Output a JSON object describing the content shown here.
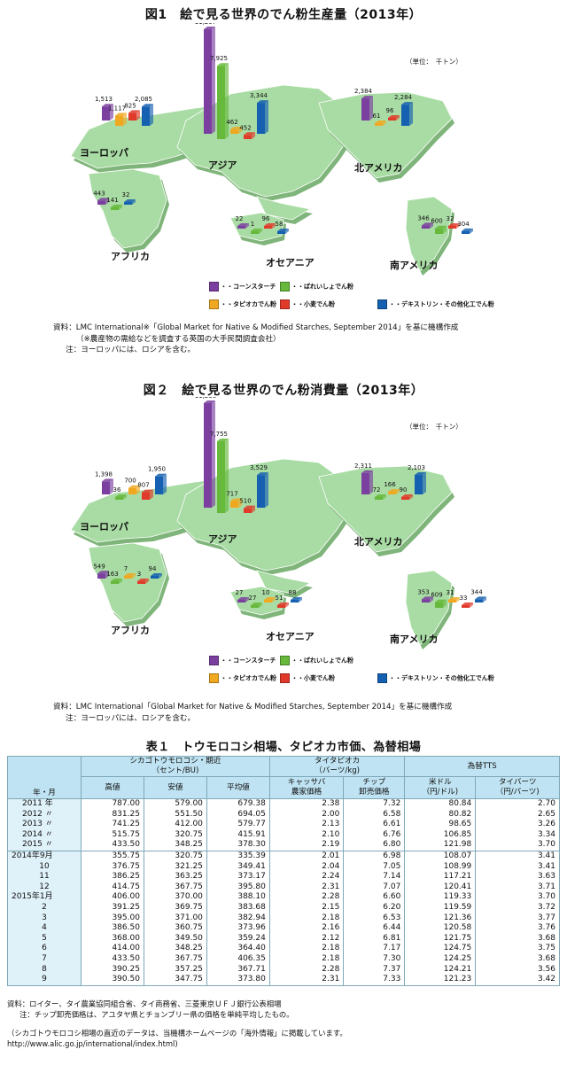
{
  "fig1": {
    "title": "図1　絵で見る世界のでん粉生産量（2013年）",
    "unit": "（単位：　千トン）",
    "regions": [
      "ヨーロッパ",
      "アジア",
      "北アメリカ",
      "アフリカ",
      "オセアニア",
      "南アメリカ"
    ],
    "legend": [
      "・・コーンスターチ",
      "・・ばれいしょでん粉",
      "・・タピオカでん粉",
      "・・小麦でん粉",
      "・・デキストリン・その他化工でん粉"
    ],
    "bars": [
      {
        "region": "ヨーロッパ",
        "label": "1,513",
        "value": 1513,
        "type": "corn"
      },
      {
        "region": "ヨーロッパ",
        "label": "1,117",
        "value": 1117,
        "type": "potato"
      },
      {
        "region": "ヨーロッパ",
        "label": "825",
        "value": 825,
        "type": "wheat"
      },
      {
        "region": "ヨーロッパ",
        "label": "2,085",
        "value": 2085,
        "type": "dextrin"
      },
      {
        "region": "アジア",
        "label": "11,297",
        "value": 11297,
        "type": "corn"
      },
      {
        "region": "アジア",
        "label": "7,925",
        "value": 7925,
        "type": "tapioca"
      },
      {
        "region": "アジア",
        "label": "462",
        "value": 462,
        "type": "potato"
      },
      {
        "region": "アジア",
        "label": "452",
        "value": 452,
        "type": "wheat"
      },
      {
        "region": "アジア",
        "label": "3,344",
        "value": 3344,
        "type": "dextrin"
      },
      {
        "region": "北アメリカ",
        "label": "2,384",
        "value": 2384,
        "type": "corn"
      },
      {
        "region": "北アメリカ",
        "label": "61",
        "value": 61,
        "type": "potato"
      },
      {
        "region": "北アメリカ",
        "label": "96",
        "value": 96,
        "type": "wheat"
      },
      {
        "region": "北アメリカ",
        "label": "2,284",
        "value": 2284,
        "type": "dextrin"
      },
      {
        "region": "アフリカ",
        "label": "443",
        "value": 443,
        "type": "corn"
      },
      {
        "region": "アフリカ",
        "label": "141",
        "value": 141,
        "type": "tapioca"
      },
      {
        "region": "アフリカ",
        "label": "32",
        "value": 32,
        "type": "dextrin"
      },
      {
        "region": "オセアニア",
        "label": "22",
        "value": 22,
        "type": "corn"
      },
      {
        "region": "オセアニア",
        "label": "1",
        "value": 1,
        "type": "tapioca"
      },
      {
        "region": "オセアニア",
        "label": "96",
        "value": 96,
        "type": "wheat"
      },
      {
        "region": "オセアニア",
        "label": "58",
        "value": 58,
        "type": "dextrin"
      },
      {
        "region": "南アメリカ",
        "label": "346",
        "value": 346,
        "type": "corn"
      },
      {
        "region": "南アメリカ",
        "label": "600",
        "value": 600,
        "type": "tapioca"
      },
      {
        "region": "南アメリカ",
        "label": "32",
        "value": 32,
        "type": "wheat"
      },
      {
        "region": "南アメリカ",
        "label": "304",
        "value": 304,
        "type": "dextrin"
      }
    ],
    "notes": [
      "資料：LMC International※「Global Market for Native & Modified Starches, September 2014」を基に機構作成",
      "（※農産物の需給などを調査する英国の大手民間調査会社）",
      "注：ヨーロッパには、ロシアを含む。"
    ]
  },
  "fig2": {
    "title": "図２　絵で見る世界のでん粉消費量（2013年）",
    "unit": "（単位：　千トン）",
    "regions": [
      "ヨーロッパ",
      "アジア",
      "北アメリカ",
      "アフリカ",
      "オセアニア",
      "南アメリカ"
    ],
    "legend": [
      "・・コーンスターチ",
      "・・ばれいしょでん粉",
      "・・タピオカでん粉",
      "・・小麦でん粉",
      "・・デキストリン・その他化工でん粉"
    ],
    "bars": [
      {
        "region": "ヨーロッパ",
        "label": "1,398",
        "value": 1398,
        "type": "corn"
      },
      {
        "region": "ヨーロッパ",
        "label": "36",
        "value": 36,
        "type": "tapioca"
      },
      {
        "region": "ヨーロッパ",
        "label": "700",
        "value": 700,
        "type": "potato"
      },
      {
        "region": "ヨーロッパ",
        "label": "807",
        "value": 807,
        "type": "wheat"
      },
      {
        "region": "ヨーロッパ",
        "label": "1,950",
        "value": 1950,
        "type": "dextrin"
      },
      {
        "region": "アジア",
        "label": "11,298",
        "value": 11298,
        "type": "corn"
      },
      {
        "region": "アジア",
        "label": "7,755",
        "value": 7755,
        "type": "tapioca"
      },
      {
        "region": "アジア",
        "label": "717",
        "value": 717,
        "type": "potato"
      },
      {
        "region": "アジア",
        "label": "510",
        "value": 510,
        "type": "wheat"
      },
      {
        "region": "アジア",
        "label": "3,529",
        "value": 3529,
        "type": "dextrin"
      },
      {
        "region": "北アメリカ",
        "label": "2,311",
        "value": 2311,
        "type": "corn"
      },
      {
        "region": "北アメリカ",
        "label": "72",
        "value": 72,
        "type": "tapioca"
      },
      {
        "region": "北アメリカ",
        "label": "166",
        "value": 166,
        "type": "potato"
      },
      {
        "region": "北アメリカ",
        "label": "90",
        "value": 90,
        "type": "wheat"
      },
      {
        "region": "北アメリカ",
        "label": "2,103",
        "value": 2103,
        "type": "dextrin"
      },
      {
        "region": "アフリカ",
        "label": "549",
        "value": 549,
        "type": "corn"
      },
      {
        "region": "アフリカ",
        "label": "163",
        "value": 163,
        "type": "tapioca"
      },
      {
        "region": "アフリカ",
        "label": "7",
        "value": 7,
        "type": "potato"
      },
      {
        "region": "アフリカ",
        "label": "3",
        "value": 3,
        "type": "wheat"
      },
      {
        "region": "アフリカ",
        "label": "94",
        "value": 94,
        "type": "dextrin"
      },
      {
        "region": "オセアニア",
        "label": "27",
        "value": 27,
        "type": "corn"
      },
      {
        "region": "オセアニア",
        "label": "27",
        "value": 27,
        "type": "tapioca"
      },
      {
        "region": "オセアニア",
        "label": "10",
        "value": 10,
        "type": "potato"
      },
      {
        "region": "オセアニア",
        "label": "51",
        "value": 51,
        "type": "wheat"
      },
      {
        "region": "オセアニア",
        "label": "88",
        "value": 88,
        "type": "dextrin"
      },
      {
        "region": "南アメリカ",
        "label": "353",
        "value": 353,
        "type": "corn"
      },
      {
        "region": "南アメリカ",
        "label": "609",
        "value": 609,
        "type": "tapioca"
      },
      {
        "region": "南アメリカ",
        "label": "31",
        "value": 31,
        "type": "potato"
      },
      {
        "region": "南アメリカ",
        "label": "33",
        "value": 33,
        "type": "wheat"
      },
      {
        "region": "南アメリカ",
        "label": "344",
        "value": 344,
        "type": "dextrin"
      }
    ],
    "notes": [
      "資料：LMC International「Global Market for Native & Modified Starches, September 2014」を基に機構作成",
      "注：ヨーロッパには、ロシアを含む。"
    ]
  },
  "colors": {
    "corn": "#7b3fa0",
    "potato": "#f0a820",
    "tapioca": "#66b93a",
    "wheat": "#e03a2a",
    "dextrin": "#1560b0",
    "land": "#a9dca4",
    "land_side": "#7fb57a",
    "table_header": "#bfe3f2"
  },
  "table1": {
    "title": "表１　トウモロコシ相場、タピオカ市価、為替相場",
    "corner": "年・月",
    "group_chicago": "シカゴトウモロコシ・期近\n（セント/BU)",
    "group_tapioca": "タイタピオカ\n（バーツ/kg)",
    "group_fx": "為替TTS",
    "cols": [
      "高値",
      "安値",
      "平均値",
      "キャッサバ\n農家価格",
      "チップ\n卸売価格",
      "米ドル\n（円/ドル)",
      "タイバーツ\n（円/バーツ)"
    ],
    "rows": [
      [
        "2011 年",
        "787.00",
        "579.00",
        "679.38",
        "2.38",
        "7.32",
        "80.84",
        "2.70"
      ],
      [
        "2012 〃",
        "831.25",
        "551.50",
        "694.05",
        "2.00",
        "6.58",
        "80.82",
        "2.65"
      ],
      [
        "2013 〃",
        "741.25",
        "412.00",
        "579.77",
        "2.13",
        "6.61",
        "98.65",
        "3.26"
      ],
      [
        "2014 〃",
        "515.75",
        "320.75",
        "415.91",
        "2.10",
        "6.76",
        "106.85",
        "3.34"
      ],
      [
        "2015 〃",
        "433.50",
        "348.25",
        "378.30",
        "2.19",
        "6.80",
        "121.98",
        "3.70"
      ],
      [
        "2014年9月",
        "355.75",
        "320.75",
        "335.39",
        "2.01",
        "6.98",
        "108.07",
        "3.41"
      ],
      [
        "10",
        "376.75",
        "321.25",
        "349.41",
        "2.04",
        "7.05",
        "108.99",
        "3.41"
      ],
      [
        "11",
        "386.25",
        "363.25",
        "373.17",
        "2.24",
        "7.14",
        "117.21",
        "3.63"
      ],
      [
        "12",
        "414.75",
        "367.75",
        "395.80",
        "2.31",
        "7.07",
        "120.41",
        "3.71"
      ],
      [
        "2015年1月",
        "406.00",
        "370.00",
        "388.10",
        "2.28",
        "6.60",
        "119.33",
        "3.70"
      ],
      [
        "2",
        "391.25",
        "369.75",
        "383.68",
        "2.15",
        "6.20",
        "119.59",
        "3.72"
      ],
      [
        "3",
        "395.00",
        "371.00",
        "382.94",
        "2.18",
        "6.53",
        "121.36",
        "3.77"
      ],
      [
        "4",
        "386.50",
        "360.75",
        "373.96",
        "2.16",
        "6.44",
        "120.58",
        "3.76"
      ],
      [
        "5",
        "368.00",
        "349.50",
        "359.24",
        "2.12",
        "6.81",
        "121.75",
        "3.68"
      ],
      [
        "6",
        "414.00",
        "348.25",
        "364.40",
        "2.18",
        "7.17",
        "124.75",
        "3.75"
      ],
      [
        "7",
        "433.50",
        "367.75",
        "406.35",
        "2.18",
        "7.30",
        "124.25",
        "3.68"
      ],
      [
        "8",
        "390.25",
        "357.25",
        "367.71",
        "2.28",
        "7.37",
        "124.21",
        "3.56"
      ],
      [
        "9",
        "390.50",
        "347.75",
        "373.80",
        "2.31",
        "7.33",
        "121.23",
        "3.42"
      ]
    ],
    "notes": [
      "資料：ロイター、タイ農業協同組合省、タイ商務省、三菱東京ＵＦＪ銀行公表相場",
      "注：チップ卸売価格は、アユタヤ県とチョンブリー県の価格を単純平均したもの。",
      "",
      "（シカゴトウモロコシ相場の直近のデータは、当機構ホームページの「海外情報」に掲載しています。",
      "http://www.alic.go.jp/international/index.html)"
    ]
  }
}
